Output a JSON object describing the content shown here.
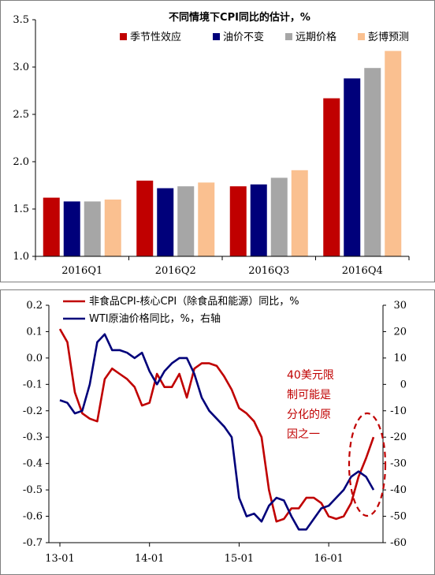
{
  "chart_data": [
    {
      "type": "bar",
      "title": "不同情境下CPI同比的估计，%",
      "categories": [
        "2016Q1",
        "2016Q2",
        "2016Q3",
        "2016Q4"
      ],
      "ylim": [
        1.0,
        3.5
      ],
      "yticks": [
        "1.0",
        "1.5",
        "2.0",
        "2.5",
        "3.0",
        "3.5"
      ],
      "legend_position": "top",
      "series": [
        {
          "name": "季节性效应",
          "color": "#c00000",
          "values": [
            1.62,
            1.8,
            1.74,
            2.67
          ]
        },
        {
          "name": "油价不变",
          "color": "#00007a",
          "values": [
            1.58,
            1.72,
            1.76,
            2.88
          ]
        },
        {
          "name": "远期价格",
          "color": "#a6a6a6",
          "values": [
            1.58,
            1.74,
            1.83,
            2.99
          ]
        },
        {
          "name": "彭博预测",
          "color": "#fac090",
          "values": [
            1.6,
            1.78,
            1.91,
            3.17
          ]
        }
      ]
    },
    {
      "type": "line",
      "x_labels": [
        "13-01",
        "14-01",
        "15-01",
        "16-01"
      ],
      "ylim_left": [
        -0.7,
        0.2
      ],
      "yticks_left": [
        "0.2",
        "0.1",
        "0.0",
        "-0.1",
        "-0.2",
        "-0.3",
        "-0.4",
        "-0.5",
        "-0.6",
        "-0.7"
      ],
      "ylim_right": [
        -60,
        30
      ],
      "yticks_right": [
        "30",
        "20",
        "10",
        "0",
        "-10",
        "-20",
        "-30",
        "-40",
        "-50",
        "-60"
      ],
      "legend_position": "top-left",
      "annotation": [
        "40美元限",
        "制可能是",
        "分化的原",
        "因之一"
      ],
      "series": [
        {
          "name": "非食品CPI-核心CPI（除食品和能源）同比，%",
          "axis": "left",
          "color": "#c00000",
          "values": [
            0.11,
            0.06,
            -0.13,
            -0.21,
            -0.23,
            -0.24,
            -0.08,
            -0.04,
            -0.06,
            -0.08,
            -0.11,
            -0.18,
            -0.17,
            -0.06,
            -0.11,
            -0.11,
            -0.06,
            -0.15,
            -0.04,
            -0.02,
            -0.02,
            -0.03,
            -0.07,
            -0.12,
            -0.19,
            -0.21,
            -0.24,
            -0.3,
            -0.5,
            -0.62,
            -0.61,
            -0.57,
            -0.57,
            -0.53,
            -0.53,
            -0.55,
            -0.6,
            -0.61,
            -0.6,
            -0.55,
            -0.45,
            -0.38,
            -0.3
          ]
        },
        {
          "name": "WTI原油价格同比，%，右轴",
          "axis": "right",
          "color": "#00007a",
          "values": [
            -6,
            -7,
            -11,
            -10,
            0,
            16,
            19,
            13,
            13,
            12,
            10,
            12,
            5,
            0,
            5,
            8,
            10,
            10,
            4,
            -5,
            -10,
            -13,
            -16,
            -20,
            -43,
            -50,
            -49,
            -52,
            -46,
            -43,
            -44,
            -50,
            -55,
            -55,
            -51,
            -47,
            -46,
            -43,
            -40,
            -35,
            -33,
            -35,
            -40
          ]
        }
      ]
    }
  ]
}
